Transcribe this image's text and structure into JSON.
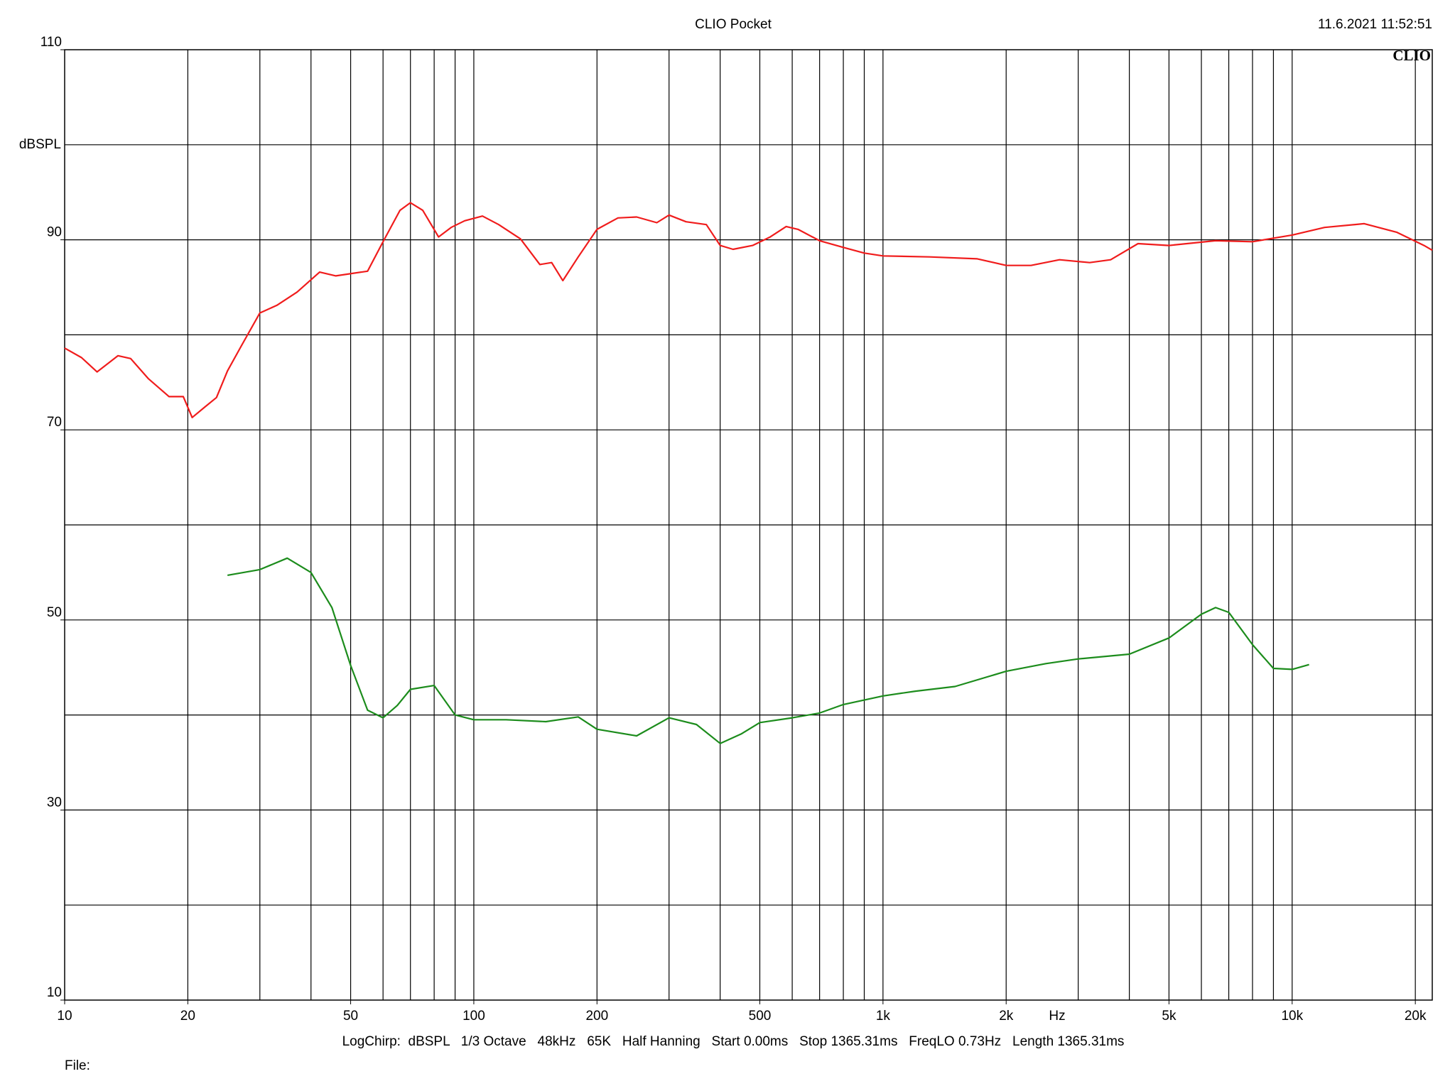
{
  "chart_data": {
    "type": "line",
    "title": "CLIO Pocket",
    "timestamp": "11.6.2021 11:52:51",
    "logo": "CLIO",
    "y_label": "dBSPL",
    "x_label": "Hz",
    "footer": "LogChirp:  dBSPL   1/3 Octave   48kHz   65K   Half Hanning   Start 0.00ms   Stop 1365.31ms   FreqLO 0.73Hz   Length 1365.31ms",
    "file_label": "File:",
    "xscale": "log",
    "xlim": [
      10,
      22000
    ],
    "ylim": [
      10,
      110
    ],
    "xticks": [
      10,
      20,
      50,
      100,
      200,
      500,
      {
        "value": 1000,
        "label": "1k"
      },
      {
        "value": 2000,
        "label": "2k"
      },
      {
        "value": 5000,
        "label": "5k"
      },
      {
        "value": 10000,
        "label": "10k"
      },
      {
        "value": 20000,
        "label": "20k"
      }
    ],
    "yticks": [
      10,
      30,
      50,
      70,
      90,
      110
    ],
    "xgrid": [
      20,
      30,
      40,
      50,
      60,
      70,
      80,
      90,
      100,
      200,
      300,
      400,
      500,
      600,
      700,
      800,
      900,
      1000,
      2000,
      3000,
      4000,
      5000,
      6000,
      7000,
      8000,
      9000,
      10000,
      20000
    ],
    "ygrid": [
      20,
      30,
      40,
      50,
      60,
      70,
      80,
      90,
      100
    ],
    "grid": true,
    "series": [
      {
        "color": "#f01c1c",
        "x": [
          10,
          11,
          12,
          13.5,
          14.5,
          16,
          18,
          19.5,
          20.5,
          22,
          23.5,
          25,
          27,
          30,
          33,
          37,
          42,
          46,
          55,
          60,
          66,
          70,
          75,
          82,
          88,
          95,
          105,
          115,
          130,
          145,
          155,
          165,
          180,
          200,
          225,
          250,
          280,
          300,
          330,
          370,
          400,
          430,
          480,
          530,
          580,
          620,
          700,
          800,
          900,
          1000,
          1300,
          1700,
          2000,
          2300,
          2700,
          3200,
          3600,
          4200,
          5000,
          6500,
          8000,
          10000,
          12000,
          15000,
          18000,
          21000,
          22000
        ],
        "values": [
          78.6,
          77.6,
          76.1,
          77.8,
          77.5,
          75.4,
          73.5,
          73.5,
          71.3,
          72.4,
          73.4,
          76.2,
          78.8,
          82.3,
          83.1,
          84.5,
          86.6,
          86.2,
          86.7,
          89.8,
          93.1,
          93.9,
          93.1,
          90.3,
          91.3,
          92.0,
          92.5,
          91.6,
          90.1,
          87.4,
          87.6,
          85.7,
          88.2,
          91.1,
          92.3,
          92.4,
          91.8,
          92.6,
          91.9,
          91.6,
          89.4,
          89.0,
          89.4,
          90.3,
          91.4,
          91.1,
          89.9,
          89.2,
          88.6,
          88.3,
          88.2,
          88.0,
          87.3,
          87.3,
          87.9,
          87.6,
          87.9,
          89.6,
          89.4,
          89.9,
          89.8,
          90.5,
          91.3,
          91.7,
          90.8,
          89.4,
          88.9
        ]
      },
      {
        "color": "#1c8c1c",
        "x": [
          25,
          30,
          35,
          40,
          45,
          50,
          55,
          60,
          65,
          70,
          80,
          90,
          100,
          120,
          150,
          180,
          200,
          250,
          300,
          350,
          400,
          450,
          500,
          600,
          700,
          800,
          1000,
          1200,
          1500,
          2000,
          2500,
          3000,
          4000,
          5000,
          6000,
          6500,
          7000,
          8000,
          9000,
          10000,
          11000
        ],
        "values": [
          54.7,
          55.3,
          56.5,
          55.0,
          51.3,
          45.2,
          40.5,
          39.7,
          41.0,
          42.7,
          43.1,
          40.0,
          39.5,
          39.5,
          39.3,
          39.8,
          38.5,
          37.8,
          39.7,
          39.0,
          37.0,
          38.0,
          39.2,
          39.7,
          40.2,
          41.1,
          42.0,
          42.5,
          43.0,
          44.6,
          45.4,
          45.9,
          46.4,
          48.1,
          50.6,
          51.3,
          50.8,
          47.4,
          44.9,
          44.8,
          45.3
        ]
      }
    ]
  }
}
